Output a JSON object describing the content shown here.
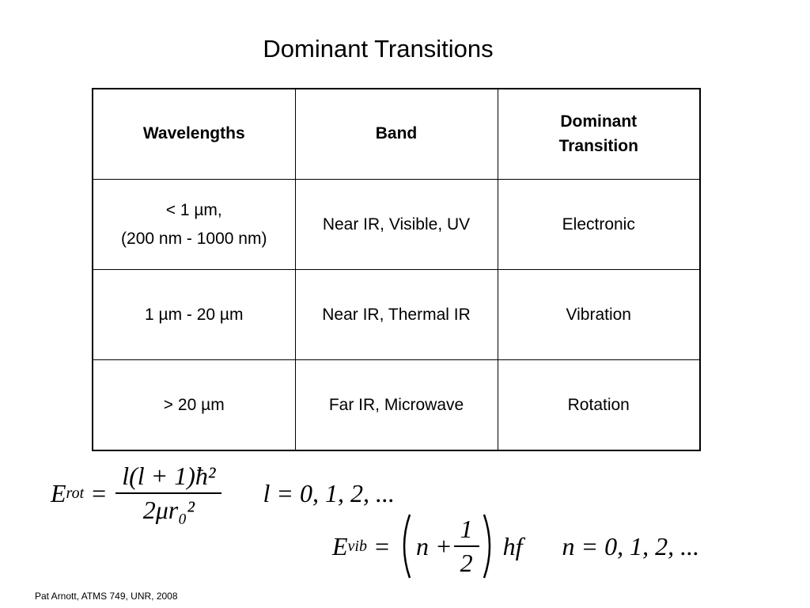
{
  "title": "Dominant Transitions",
  "table": {
    "header": [
      "Wavelengths",
      "Band",
      "Dominant Transition"
    ],
    "rows": [
      [
        [
          "< 1 µm,",
          "(200 nm - 1000 nm)"
        ],
        "Near IR, Visible, UV",
        "Electronic"
      ],
      [
        "1 µm - 20 µm",
        "Near IR, Thermal IR",
        "Vibration"
      ],
      [
        "> 20 µm",
        "Far IR, Microwave",
        "Rotation"
      ]
    ]
  },
  "equations": [
    {
      "symbol": "E",
      "subscript": "rot",
      "relation": "=",
      "numerator": "l(l + 1)ħ²",
      "denominator": "2μr₀²",
      "condition": "l = 0, 1, 2, ..."
    },
    {
      "symbol": "E",
      "subscript": "vib",
      "relation": "=",
      "term": "n +",
      "numerator": "1",
      "denominator": "2",
      "factor": "hf",
      "condition": "n = 0, 1, 2, ..."
    }
  ],
  "footer": "Pat Arnott, ATMS 749, UNR, 2008"
}
